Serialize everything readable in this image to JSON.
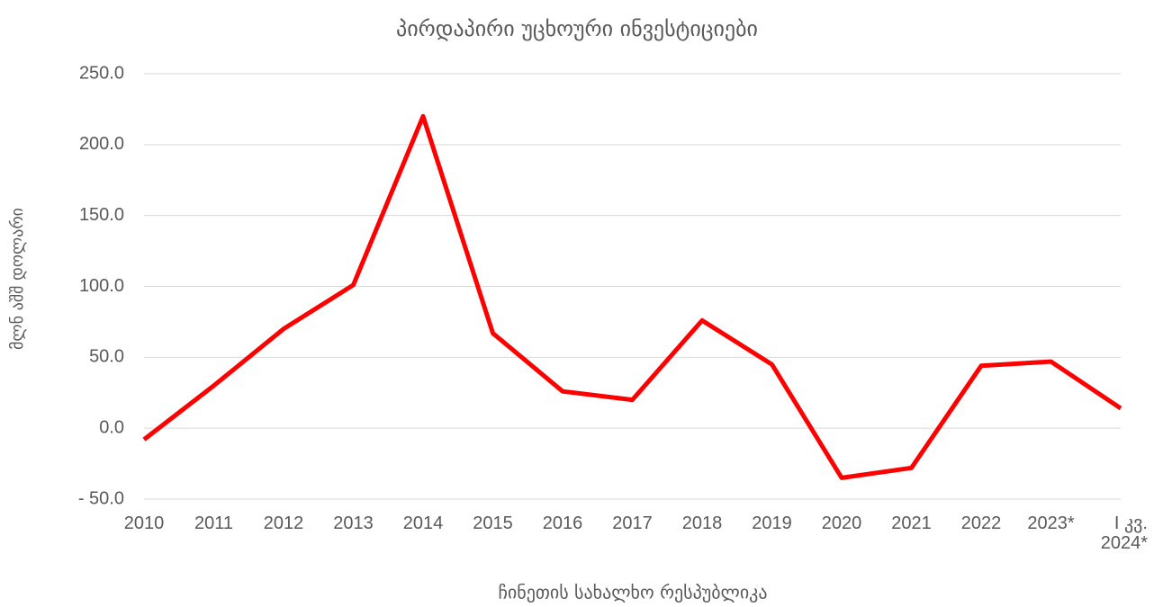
{
  "chart_data": {
    "type": "line",
    "title": "პირდაპირი უცხოური ინვესტიციები",
    "y_label": "მლნ აშშ დოლარი",
    "x_label": "ჩინეთის სახალხო რესპუბლიკა",
    "categories": [
      "2010",
      "2011",
      "2012",
      "2013",
      "2014",
      "2015",
      "2016",
      "2017",
      "2018",
      "2019",
      "2020",
      "2021",
      "2022",
      "2023*",
      "I კვ. 2024*"
    ],
    "series": [
      {
        "name": "ჩინეთის სახალხო რესპუბლიკა",
        "color": "#ff0000",
        "values": [
          -8,
          30,
          70,
          101,
          220,
          67,
          26,
          20,
          76,
          45,
          -35,
          -28,
          44,
          47,
          14
        ]
      }
    ],
    "ylim": [
      -50,
      250
    ],
    "yticks": [
      {
        "value": -50,
        "label": "- 50.0"
      },
      {
        "value": 0,
        "label": "0.0"
      },
      {
        "value": 50,
        "label": "50.0"
      },
      {
        "value": 100,
        "label": "100.0"
      },
      {
        "value": 150,
        "label": "150.0"
      },
      {
        "value": 200,
        "label": "200.0"
      },
      {
        "value": 250,
        "label": "250.0"
      }
    ],
    "grid": true
  }
}
